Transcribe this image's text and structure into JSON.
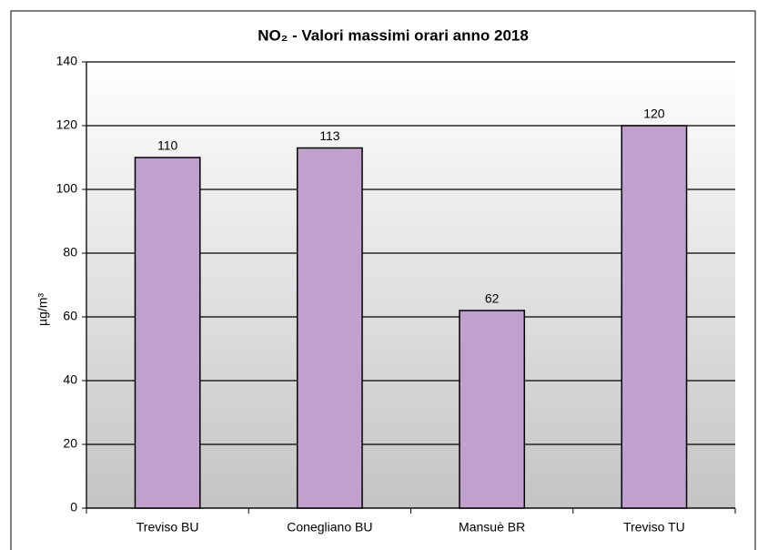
{
  "chart_data": {
    "type": "bar",
    "title": "NO₂ - Valori massimi orari  anno 2018",
    "ylabel": "µg/m³",
    "categories": [
      "Treviso BU",
      "Conegliano BU",
      "Mansuè BR",
      "Treviso TU"
    ],
    "values": [
      110,
      113,
      62,
      120
    ],
    "color": "#c0a0cc",
    "ylim": [
      0,
      140
    ],
    "yticks": [
      0,
      20,
      40,
      60,
      80,
      100,
      120,
      140
    ],
    "grid": true
  }
}
